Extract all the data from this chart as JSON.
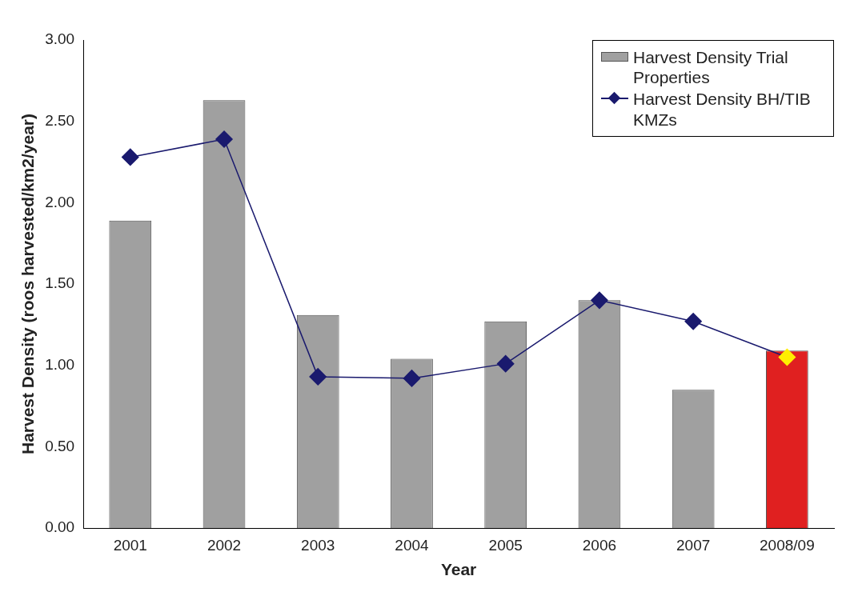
{
  "chart_data": {
    "type": "bar",
    "xlabel": "Year",
    "ylabel": "Harvest Density (roos harvested/km2/year)",
    "categories": [
      "2001",
      "2002",
      "2003",
      "2004",
      "2005",
      "2006",
      "2007",
      "2008/09"
    ],
    "series": [
      {
        "name": "Harvest Density Trial Properties",
        "color": "#a0a0a0",
        "colors": [
          "#a0a0a0",
          "#a0a0a0",
          "#a0a0a0",
          "#a0a0a0",
          "#a0a0a0",
          "#a0a0a0",
          "#a0a0a0",
          "#e02020"
        ],
        "values": [
          1.89,
          2.63,
          1.31,
          1.04,
          1.27,
          1.4,
          0.85,
          1.09
        ]
      },
      {
        "name": "Harvest Density BH/TIB KMZs",
        "type": "line",
        "color": "#1a1a6e",
        "colors": [
          "#1a1a6e",
          "#1a1a6e",
          "#1a1a6e",
          "#1a1a6e",
          "#1a1a6e",
          "#1a1a6e",
          "#1a1a6e",
          "#ffee00"
        ],
        "marker": "diamond",
        "values": [
          2.28,
          2.39,
          0.93,
          0.92,
          1.01,
          1.4,
          1.27,
          1.05
        ]
      }
    ],
    "ylim": [
      0,
      3
    ],
    "yticks": [
      {
        "value": 0,
        "label": "0.00"
      },
      {
        "value": 0.5,
        "label": "0.50"
      },
      {
        "value": 1,
        "label": "1.00"
      },
      {
        "value": 1.5,
        "label": "1.50"
      },
      {
        "value": 2,
        "label": "2.00"
      },
      {
        "value": 2.5,
        "label": "2.50"
      },
      {
        "value": 3,
        "label": "3.00"
      }
    ],
    "grid": false,
    "legend": "top right"
  }
}
